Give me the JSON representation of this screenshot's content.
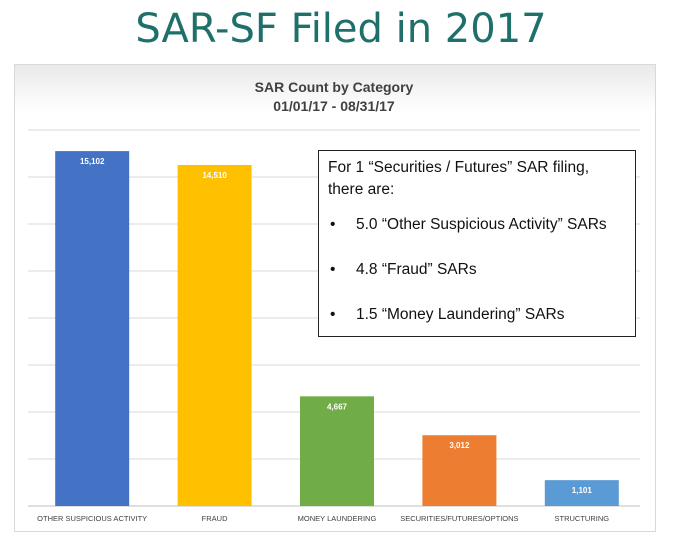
{
  "slide": {
    "title": "SAR-SF Filed in 2017"
  },
  "chart_data": {
    "type": "bar",
    "title": "SAR Count by Category",
    "subtitle": "01/01/17 - 08/31/17",
    "categories": [
      "OTHER SUSPICIOUS ACTIVITY",
      "FRAUD",
      "MONEY LAUNDERING",
      "SECURITIES/FUTURES/OPTIONS",
      "STRUCTURING"
    ],
    "values": [
      15102,
      14510,
      4667,
      3012,
      1101
    ],
    "data_labels": [
      "15,102",
      "14,510",
      "4,667",
      "3,012",
      "1,101"
    ],
    "colors": [
      "#4472c4",
      "#ffc000",
      "#70ad47",
      "#ed7d31",
      "#5b9bd5"
    ],
    "ylim": [
      0,
      16000
    ],
    "grid": true,
    "xlabel": "",
    "ylabel": ""
  },
  "callout": {
    "heading": "For 1 “Securities / Futures” SAR filing, there are:",
    "items": [
      "5.0 “Other Suspicious Activity” SARs",
      "4.8 “Fraud” SARs",
      "1.5 “Money Laundering” SARs"
    ]
  }
}
